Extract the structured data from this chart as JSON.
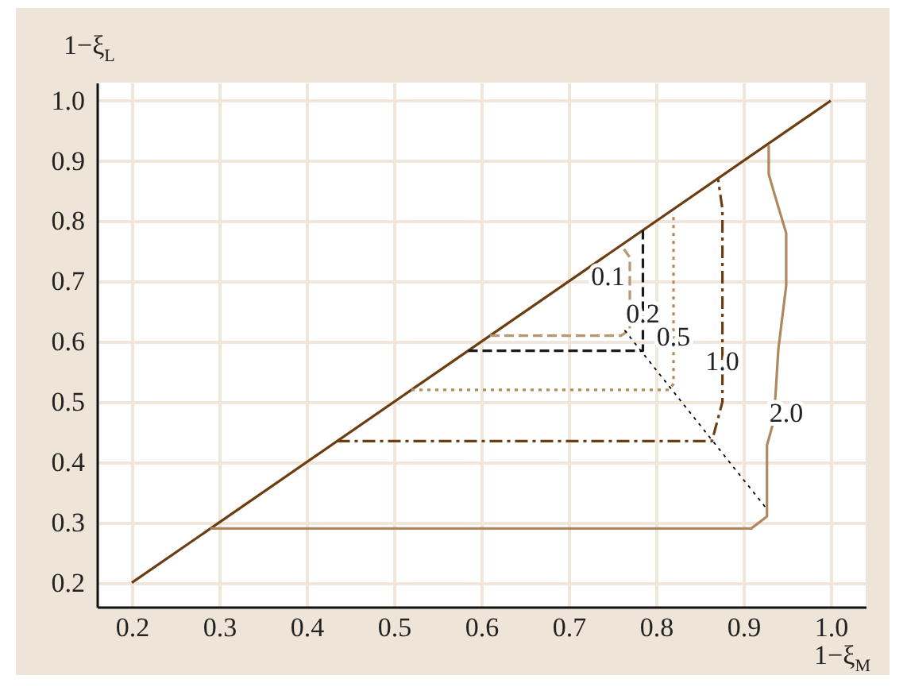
{
  "chart_data": {
    "type": "line",
    "xlabel": "1−ξ$_{M}$",
    "ylabel": "1−ξ$_{L}$",
    "xlim": [
      0.16,
      1.04
    ],
    "ylim": [
      0.16,
      1.03
    ],
    "xticks": [
      0.2,
      0.3,
      0.4,
      0.5,
      0.6,
      0.7,
      0.8,
      0.9,
      {
        "value": 1,
        "label": "1.0"
      }
    ],
    "yticks": [
      0.2,
      0.3,
      0.4,
      0.5,
      0.6,
      0.7,
      0.8,
      0.9,
      {
        "value": 1,
        "label": "1.0"
      }
    ],
    "grid": true,
    "marker": "none",
    "series": [
      {
        "color": "#6b3d10",
        "line_style": "solid",
        "x": [
          0.2,
          1.0
        ],
        "values": [
          0.2,
          1.0
        ]
      },
      {
        "name": "0.1",
        "color": "#b89870",
        "line_style": "dashed",
        "x": [
          0.61,
          0.76,
          0.77,
          0.77,
          0.76
        ],
        "values": [
          0.61,
          0.61,
          0.62,
          0.74,
          0.76
        ]
      },
      {
        "name": "0.2",
        "color": "#1a1a1a",
        "line_style": "dashed",
        "x": [
          0.585,
          0.785,
          0.785
        ],
        "values": [
          0.585,
          0.585,
          0.785
        ]
      },
      {
        "name": "0.5",
        "color": "#b58a5a",
        "line_style": "dotted",
        "x": [
          0.52,
          0.815,
          0.82,
          0.82
        ],
        "values": [
          0.52,
          0.52,
          0.53,
          0.81
        ]
      },
      {
        "name": "1.0",
        "color": "#6b3d10",
        "line_style": "dashdot",
        "x": [
          0.435,
          0.864,
          0.876,
          0.876,
          0.871
        ],
        "values": [
          0.435,
          0.435,
          0.5,
          0.82,
          0.87
        ]
      },
      {
        "name": "2.0",
        "color": "#b08860",
        "line_style": "solid",
        "x": [
          0.29,
          0.909,
          0.927,
          0.927,
          0.935,
          0.94,
          0.949,
          0.949,
          0.936,
          0.929,
          0.929
        ],
        "values": [
          0.29,
          0.29,
          0.31,
          0.428,
          0.47,
          0.587,
          0.693,
          0.78,
          0.843,
          0.878,
          0.926
        ]
      },
      {
        "color": "#000000",
        "line_style": "dotted",
        "x": [
          0.764,
          0.927
        ],
        "values": [
          0.619,
          0.322
        ]
      }
    ]
  }
}
